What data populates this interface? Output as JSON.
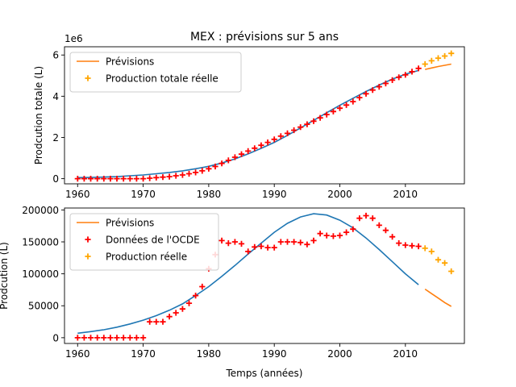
{
  "figure": {
    "title": "MEX : prévisions sur 5 ans"
  },
  "chart_data": [
    {
      "type": "line",
      "ylabel": "Prodcution totale (L)",
      "xlabel": "",
      "y_offset_label": "1e6",
      "xlim": [
        1958,
        2019
      ],
      "ylim": [
        -250000,
        6400000
      ],
      "x_ticks": [
        1960,
        1970,
        1980,
        1990,
        2000,
        2010
      ],
      "x_tick_labels": [
        "1960",
        "1970",
        "1980",
        "1990",
        "2000",
        "2010"
      ],
      "y_ticks": [
        0,
        2000000,
        4000000,
        6000000
      ],
      "y_tick_labels": [
        "0",
        "2",
        "4",
        "6"
      ],
      "grid": false,
      "legend": {
        "placement": "upper-left"
      },
      "series": [
        {
          "name": "",
          "kind": "line",
          "color": "#1f77b4",
          "x": [
            1960,
            1962,
            1964,
            1966,
            1968,
            1970,
            1972,
            1974,
            1976,
            1978,
            1980,
            1982,
            1984,
            1986,
            1988,
            1990,
            1992,
            1994,
            1996,
            1998,
            2000,
            2002,
            2004,
            2006,
            2008,
            2010,
            2012
          ],
          "y": [
            50000,
            60000,
            80000,
            100000,
            140000,
            180000,
            240000,
            300000,
            380000,
            480000,
            600000,
            760000,
            960000,
            1200000,
            1470000,
            1760000,
            2100000,
            2460000,
            2830000,
            3200000,
            3560000,
            3900000,
            4230000,
            4540000,
            4830000,
            5070000,
            5250000
          ]
        },
        {
          "name": "Prévisions",
          "kind": "line",
          "color": "#ff7f0e",
          "x": [
            2013,
            2014,
            2015,
            2016,
            2017
          ],
          "y": [
            5300000,
            5370000,
            5440000,
            5500000,
            5560000
          ]
        },
        {
          "name": "",
          "kind": "marker",
          "color": "#ff0000",
          "x": [
            1960,
            1961,
            1962,
            1963,
            1964,
            1965,
            1966,
            1967,
            1968,
            1969,
            1970,
            1971,
            1972,
            1973,
            1974,
            1975,
            1976,
            1977,
            1978,
            1979,
            1980,
            1981,
            1982,
            1983,
            1984,
            1985,
            1986,
            1987,
            1988,
            1989,
            1990,
            1991,
            1992,
            1993,
            1994,
            1995,
            1996,
            1997,
            1998,
            1999,
            2000,
            2001,
            2002,
            2003,
            2004,
            2005,
            2006,
            2007,
            2008,
            2009,
            2010,
            2011,
            2012
          ],
          "y": [
            0,
            0,
            0,
            0,
            0,
            0,
            0,
            0,
            0,
            0,
            0,
            25000,
            50000,
            75000,
            100000,
            140000,
            180000,
            240000,
            300000,
            380000,
            480000,
            590000,
            740000,
            890000,
            1040000,
            1190000,
            1340000,
            1480000,
            1620000,
            1760000,
            1910000,
            2060000,
            2200000,
            2350000,
            2500000,
            2640000,
            2790000,
            2950000,
            3110000,
            3260000,
            3420000,
            3570000,
            3740000,
            3930000,
            4120000,
            4300000,
            4460000,
            4620000,
            4780000,
            4920000,
            5040000,
            5190000,
            5350000
          ]
        },
        {
          "name": "Production totale réelle",
          "kind": "marker",
          "color": "#ffa500",
          "x": [
            2013,
            2014,
            2015,
            2016,
            2017
          ],
          "y": [
            5560000,
            5720000,
            5850000,
            5950000,
            6080000
          ]
        }
      ]
    },
    {
      "type": "line",
      "ylabel": "Prodcution (L)",
      "xlabel": "Temps (années)",
      "xlim": [
        1958,
        2019
      ],
      "ylim": [
        -9000,
        203000
      ],
      "x_ticks": [
        1960,
        1970,
        1980,
        1990,
        2000,
        2010
      ],
      "x_tick_labels": [
        "1960",
        "1970",
        "1980",
        "1990",
        "2000",
        "2010"
      ],
      "y_ticks": [
        0,
        50000,
        100000,
        150000,
        200000
      ],
      "y_tick_labels": [
        "0",
        "50000",
        "100000",
        "150000",
        "200000"
      ],
      "grid": false,
      "legend": {
        "placement": "upper-left"
      },
      "series": [
        {
          "name": "",
          "kind": "line",
          "color": "#1f77b4",
          "x": [
            1960,
            1962,
            1964,
            1966,
            1968,
            1970,
            1972,
            1974,
            1976,
            1978,
            1980,
            1982,
            1984,
            1986,
            1988,
            1990,
            1992,
            1994,
            1996,
            1998,
            2000,
            2002,
            2004,
            2006,
            2008,
            2010,
            2012
          ],
          "y": [
            7000,
            9500,
            12500,
            16500,
            21500,
            27500,
            34500,
            43000,
            53000,
            66000,
            80000,
            96000,
            113000,
            131000,
            148000,
            165000,
            179000,
            189000,
            194000,
            192000,
            184000,
            172000,
            156000,
            138000,
            119000,
            100000,
            83000
          ]
        },
        {
          "name": "Prévisions",
          "kind": "line",
          "color": "#ff7f0e",
          "x": [
            2013,
            2014,
            2015,
            2016,
            2017
          ],
          "y": [
            76000,
            69000,
            62000,
            55000,
            49000
          ]
        },
        {
          "name": "Données de l'OCDE",
          "kind": "marker",
          "color": "#ff0000",
          "x": [
            1960,
            1961,
            1962,
            1963,
            1964,
            1965,
            1966,
            1967,
            1968,
            1969,
            1970,
            1971,
            1972,
            1973,
            1974,
            1975,
            1976,
            1977,
            1978,
            1979,
            1980,
            1981,
            1982,
            1983,
            1984,
            1985,
            1986,
            1987,
            1988,
            1989,
            1990,
            1991,
            1992,
            1993,
            1994,
            1995,
            1996,
            1997,
            1998,
            1999,
            2000,
            2001,
            2002,
            2003,
            2004,
            2005,
            2006,
            2007,
            2008,
            2009,
            2010,
            2011,
            2012
          ],
          "y": [
            0,
            0,
            0,
            0,
            0,
            0,
            0,
            0,
            0,
            0,
            0,
            25000,
            25000,
            25000,
            33000,
            39000,
            45000,
            54000,
            66000,
            80000,
            108000,
            130000,
            152000,
            148000,
            150000,
            147000,
            135000,
            142000,
            143000,
            141000,
            141000,
            150000,
            150000,
            150000,
            149000,
            146000,
            152000,
            163000,
            160000,
            159000,
            160000,
            165000,
            170000,
            187000,
            191000,
            187000,
            176000,
            168000,
            158000,
            148000,
            145000,
            144000,
            143000
          ]
        },
        {
          "name": "Production réelle",
          "kind": "marker",
          "color": "#ffa500",
          "x": [
            2013,
            2014,
            2015,
            2016,
            2017
          ],
          "y": [
            140000,
            135000,
            122000,
            117000,
            104000
          ]
        }
      ]
    }
  ]
}
